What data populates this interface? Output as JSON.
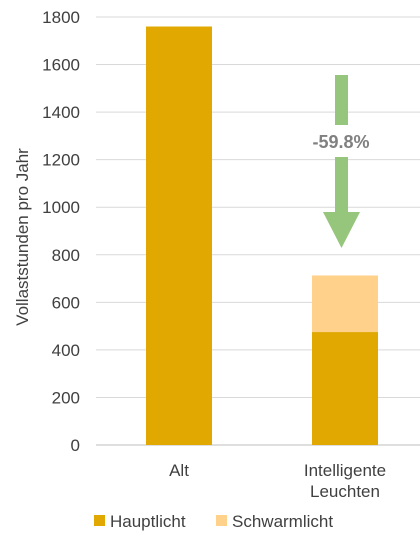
{
  "chart_data": {
    "type": "bar",
    "stacked": true,
    "ylabel": "Vollaststunden pro Jahr",
    "ylim": [
      0,
      1800
    ],
    "yticks": [
      0,
      200,
      400,
      600,
      800,
      1000,
      1200,
      1400,
      1600,
      1800
    ],
    "grid": true,
    "categories": [
      [
        "Alt"
      ],
      [
        "Intelligente",
        "Leuchten"
      ]
    ],
    "series": [
      {
        "name": "Hauptlicht",
        "color": "#E0A800",
        "values": [
          1760,
          475
        ]
      },
      {
        "name": "Schwarmlicht",
        "color": "#FFD18A",
        "values": [
          0,
          238
        ]
      }
    ],
    "legend": "bottom",
    "annotation": {
      "text": "-59.8%",
      "arrow": "down",
      "arrow_color": "#96C57C"
    }
  }
}
